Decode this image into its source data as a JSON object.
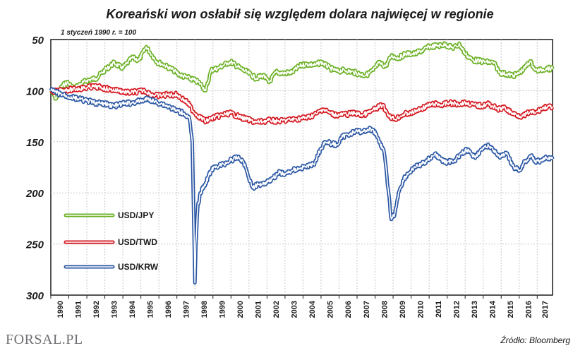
{
  "logo": {
    "text": "FORSAL.PL"
  },
  "chart_data": {
    "type": "line",
    "title": "Koreański won osłabił się względem dolara najwięcej w regionie",
    "subtitle": "1 styczeń 1990 r. = 100",
    "source": "Źródło: Bloomberg",
    "y_inverted": true,
    "ylim": [
      50,
      300
    ],
    "xlim": [
      1990,
      2017.85
    ],
    "yticks": [
      50,
      100,
      150,
      200,
      250,
      300
    ],
    "x_tick_labels": [
      "1990",
      "1991",
      "1992",
      "1993",
      "1994",
      "1995",
      "1996",
      "1997",
      "1998",
      "1999",
      "2000",
      "2001",
      "2002",
      "2003",
      "2004",
      "2005",
      "2006",
      "2007",
      "2008",
      "2009",
      "2010",
      "2011",
      "2012",
      "2013",
      "2014",
      "2015",
      "2016",
      "2017"
    ],
    "grid": true,
    "legend_position": "left-middle",
    "series": [
      {
        "name": "USD/JPY",
        "color": "#6ab023",
        "points": [
          [
            1990,
            100
          ],
          [
            1990.3,
            108
          ],
          [
            1990.6,
            96
          ],
          [
            1990.9,
            92
          ],
          [
            1991.3,
            98
          ],
          [
            1991.7,
            93
          ],
          [
            1992.0,
            90
          ],
          [
            1992.5,
            88
          ],
          [
            1993.0,
            80
          ],
          [
            1993.5,
            73
          ],
          [
            1994.0,
            78
          ],
          [
            1994.5,
            68
          ],
          [
            1994.9,
            70
          ],
          [
            1995.3,
            57
          ],
          [
            1995.6,
            65
          ],
          [
            1995.9,
            72
          ],
          [
            1996.3,
            75
          ],
          [
            1996.8,
            80
          ],
          [
            1997.2,
            85
          ],
          [
            1997.7,
            88
          ],
          [
            1998.0,
            90
          ],
          [
            1998.3,
            93
          ],
          [
            1998.6,
            100
          ],
          [
            1998.9,
            80
          ],
          [
            1999.3,
            78
          ],
          [
            1999.8,
            73
          ],
          [
            2000.0,
            72
          ],
          [
            2000.5,
            78
          ],
          [
            2000.9,
            82
          ],
          [
            2001.4,
            88
          ],
          [
            2001.8,
            85
          ],
          [
            2002.1,
            92
          ],
          [
            2002.5,
            82
          ],
          [
            2002.9,
            83
          ],
          [
            2003.4,
            82
          ],
          [
            2003.8,
            76
          ],
          [
            2004.2,
            74
          ],
          [
            2004.7,
            75
          ],
          [
            2005.0,
            72
          ],
          [
            2005.5,
            78
          ],
          [
            2005.9,
            81
          ],
          [
            2006.3,
            80
          ],
          [
            2006.8,
            82
          ],
          [
            2007.2,
            84
          ],
          [
            2007.5,
            85
          ],
          [
            2007.9,
            80
          ],
          [
            2008.2,
            73
          ],
          [
            2008.6,
            76
          ],
          [
            2008.9,
            66
          ],
          [
            2009.3,
            68
          ],
          [
            2009.7,
            64
          ],
          [
            2010.2,
            64
          ],
          [
            2010.7,
            60
          ],
          [
            2011.0,
            57
          ],
          [
            2011.5,
            56
          ],
          [
            2011.9,
            55
          ],
          [
            2012.3,
            58
          ],
          [
            2012.7,
            55
          ],
          [
            2013.0,
            64
          ],
          [
            2013.4,
            70
          ],
          [
            2013.8,
            71
          ],
          [
            2014.2,
            72
          ],
          [
            2014.6,
            73
          ],
          [
            2014.9,
            82
          ],
          [
            2015.3,
            84
          ],
          [
            2015.7,
            85
          ],
          [
            2015.9,
            84
          ],
          [
            2016.3,
            78
          ],
          [
            2016.6,
            71
          ],
          [
            2016.9,
            80
          ],
          [
            2017.2,
            80
          ],
          [
            2017.5,
            78
          ],
          [
            2017.85,
            79
          ]
        ]
      },
      {
        "name": "USD/TWD",
        "color": "#d5151e",
        "points": [
          [
            1990,
            100
          ],
          [
            1990.4,
            101
          ],
          [
            1990.8,
            99
          ],
          [
            1991.2,
            99
          ],
          [
            1991.6,
            98
          ],
          [
            1992.0,
            97
          ],
          [
            1992.4,
            96
          ],
          [
            1992.8,
            97
          ],
          [
            1993.3,
            99
          ],
          [
            1993.8,
            100
          ],
          [
            1994.3,
            102
          ],
          [
            1994.8,
            101
          ],
          [
            1995.2,
            100
          ],
          [
            1995.6,
            104
          ],
          [
            1996.0,
            105
          ],
          [
            1996.5,
            104
          ],
          [
            1997.0,
            104
          ],
          [
            1997.3,
            108
          ],
          [
            1997.6,
            112
          ],
          [
            1997.9,
            120
          ],
          [
            1998.2,
            125
          ],
          [
            1998.6,
            130
          ],
          [
            1998.9,
            127
          ],
          [
            1999.3,
            125
          ],
          [
            1999.7,
            123
          ],
          [
            2000.0,
            122
          ],
          [
            2000.5,
            126
          ],
          [
            2000.9,
            128
          ],
          [
            2001.4,
            131
          ],
          [
            2001.8,
            130
          ],
          [
            2002.2,
            129
          ],
          [
            2002.6,
            130
          ],
          [
            2003.0,
            129
          ],
          [
            2003.5,
            128
          ],
          [
            2003.9,
            127
          ],
          [
            2004.3,
            126
          ],
          [
            2004.8,
            122
          ],
          [
            2005.1,
            118
          ],
          [
            2005.5,
            122
          ],
          [
            2005.9,
            124
          ],
          [
            2006.4,
            123
          ],
          [
            2006.9,
            122
          ],
          [
            2007.3,
            124
          ],
          [
            2007.7,
            121
          ],
          [
            2008.0,
            118
          ],
          [
            2008.4,
            114
          ],
          [
            2008.8,
            125
          ],
          [
            2009.1,
            128
          ],
          [
            2009.6,
            123
          ],
          [
            2010.0,
            122
          ],
          [
            2010.5,
            118
          ],
          [
            2010.9,
            115
          ],
          [
            2011.3,
            113
          ],
          [
            2011.7,
            114
          ],
          [
            2012.1,
            112
          ],
          [
            2012.6,
            113
          ],
          [
            2013.0,
            112
          ],
          [
            2013.5,
            114
          ],
          [
            2013.9,
            115
          ],
          [
            2014.3,
            113
          ],
          [
            2014.8,
            118
          ],
          [
            2015.2,
            117
          ],
          [
            2015.6,
            122
          ],
          [
            2015.9,
            124
          ],
          [
            2016.2,
            125
          ],
          [
            2016.6,
            121
          ],
          [
            2016.9,
            122
          ],
          [
            2017.2,
            118
          ],
          [
            2017.5,
            116
          ],
          [
            2017.85,
            116
          ]
        ]
      },
      {
        "name": "USD/KRW",
        "color": "#2a56a3",
        "points": [
          [
            1990,
            100
          ],
          [
            1990.5,
            103
          ],
          [
            1991.0,
            106
          ],
          [
            1991.5,
            108
          ],
          [
            1992.0,
            110
          ],
          [
            1992.5,
            112
          ],
          [
            1993.0,
            113
          ],
          [
            1993.5,
            115
          ],
          [
            1994.0,
            113
          ],
          [
            1994.5,
            112
          ],
          [
            1995.0,
            110
          ],
          [
            1995.4,
            108
          ],
          [
            1995.8,
            111
          ],
          [
            1996.2,
            113
          ],
          [
            1996.6,
            116
          ],
          [
            1997.0,
            120
          ],
          [
            1997.4,
            122
          ],
          [
            1997.7,
            128
          ],
          [
            1997.85,
            150
          ],
          [
            1997.95,
            240
          ],
          [
            1998.0,
            288
          ],
          [
            1998.05,
            250
          ],
          [
            1998.15,
            215
          ],
          [
            1998.3,
            200
          ],
          [
            1998.6,
            190
          ],
          [
            1998.9,
            178
          ],
          [
            1999.2,
            174
          ],
          [
            1999.6,
            172
          ],
          [
            2000.0,
            168
          ],
          [
            2000.4,
            165
          ],
          [
            2000.7,
            170
          ],
          [
            2000.9,
            180
          ],
          [
            2001.2,
            195
          ],
          [
            2001.5,
            192
          ],
          [
            2001.9,
            190
          ],
          [
            2002.3,
            186
          ],
          [
            2002.7,
            180
          ],
          [
            2003.0,
            182
          ],
          [
            2003.4,
            178
          ],
          [
            2003.8,
            176
          ],
          [
            2004.2,
            174
          ],
          [
            2004.6,
            172
          ],
          [
            2004.9,
            160
          ],
          [
            2005.2,
            150
          ],
          [
            2005.6,
            152
          ],
          [
            2005.9,
            153
          ],
          [
            2006.2,
            145
          ],
          [
            2006.6,
            142
          ],
          [
            2006.9,
            140
          ],
          [
            2007.3,
            140
          ],
          [
            2007.6,
            138
          ],
          [
            2007.9,
            138
          ],
          [
            2008.2,
            148
          ],
          [
            2008.5,
            160
          ],
          [
            2008.75,
            200
          ],
          [
            2008.9,
            226
          ],
          [
            2009.1,
            220
          ],
          [
            2009.3,
            200
          ],
          [
            2009.6,
            186
          ],
          [
            2009.9,
            180
          ],
          [
            2010.2,
            175
          ],
          [
            2010.6,
            172
          ],
          [
            2010.9,
            168
          ],
          [
            2011.3,
            162
          ],
          [
            2011.7,
            168
          ],
          [
            2012.0,
            170
          ],
          [
            2012.4,
            168
          ],
          [
            2012.8,
            162
          ],
          [
            2013.1,
            158
          ],
          [
            2013.5,
            165
          ],
          [
            2013.9,
            158
          ],
          [
            2014.3,
            154
          ],
          [
            2014.6,
            158
          ],
          [
            2014.9,
            165
          ],
          [
            2015.3,
            162
          ],
          [
            2015.7,
            175
          ],
          [
            2016.0,
            178
          ],
          [
            2016.3,
            170
          ],
          [
            2016.7,
            163
          ],
          [
            2016.9,
            170
          ],
          [
            2017.2,
            168
          ],
          [
            2017.5,
            166
          ],
          [
            2017.85,
            167
          ]
        ]
      }
    ]
  }
}
